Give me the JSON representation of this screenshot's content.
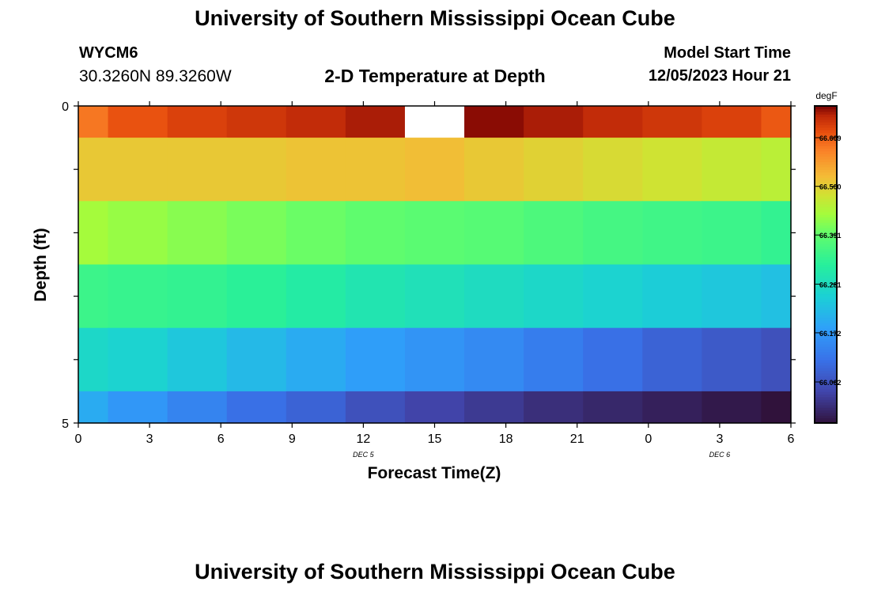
{
  "header": {
    "title": "University of Southern Mississippi Ocean Cube",
    "station_id": "WYCM6",
    "station_coords": "30.3260N  89.3260W",
    "plot_title": "2-D Temperature at Depth",
    "model_start_label": "Model Start Time",
    "model_start_value": "12/05/2023 Hour 21"
  },
  "footer": {
    "title": "University of Southern Mississippi Ocean Cube"
  },
  "chart_data": {
    "type": "heatmap",
    "title": "2-D Temperature at Depth",
    "xlabel": "Forecast Time(Z)",
    "ylabel": "Depth (ft)",
    "x_tick_labels": [
      "0",
      "3",
      "6",
      "9",
      "12",
      "15",
      "18",
      "21",
      "0",
      "3",
      "6"
    ],
    "x_date_labels": [
      {
        "label": "DEC 5",
        "at_tick": 4
      },
      {
        "label": "DEC 6",
        "at_tick": 9
      }
    ],
    "y_tick_labels": [
      "0",
      "5"
    ],
    "ylim": [
      0,
      5
    ],
    "time_steps": 12,
    "depth_levels": 5,
    "colorbar": {
      "unit": "degF",
      "min": 65.97,
      "max": 66.68,
      "tick_values": [
        66.609,
        66.5,
        66.391,
        66.281,
        66.172,
        66.062
      ],
      "tick_labels": [
        "66.609",
        "66.500",
        "66.391",
        "66.281",
        "66.172",
        "66.062"
      ]
    },
    "values": [
      [
        66.59,
        66.62,
        66.635,
        66.645,
        66.655,
        66.665,
        null,
        66.675,
        66.665,
        66.655,
        66.645,
        66.635,
        66.615
      ],
      [
        66.51,
        66.51,
        66.51,
        66.51,
        66.515,
        66.515,
        66.52,
        66.51,
        66.5,
        66.49,
        66.48,
        66.47,
        66.46
      ],
      [
        66.44,
        66.43,
        66.42,
        66.41,
        66.4,
        66.39,
        66.385,
        66.38,
        66.37,
        66.36,
        66.355,
        66.35,
        66.34
      ],
      [
        66.35,
        66.345,
        66.34,
        66.33,
        66.315,
        66.3,
        66.29,
        66.28,
        66.27,
        66.26,
        66.25,
        66.24,
        66.23
      ],
      [
        66.27,
        66.26,
        66.24,
        66.22,
        66.2,
        66.18,
        66.165,
        66.15,
        66.13,
        66.11,
        66.09,
        66.075,
        66.06
      ],
      [
        66.2,
        66.17,
        66.14,
        66.11,
        66.09,
        66.06,
        66.04,
        66.025,
        66.01,
        66.0,
        65.99,
        65.98,
        65.97
      ]
    ]
  }
}
